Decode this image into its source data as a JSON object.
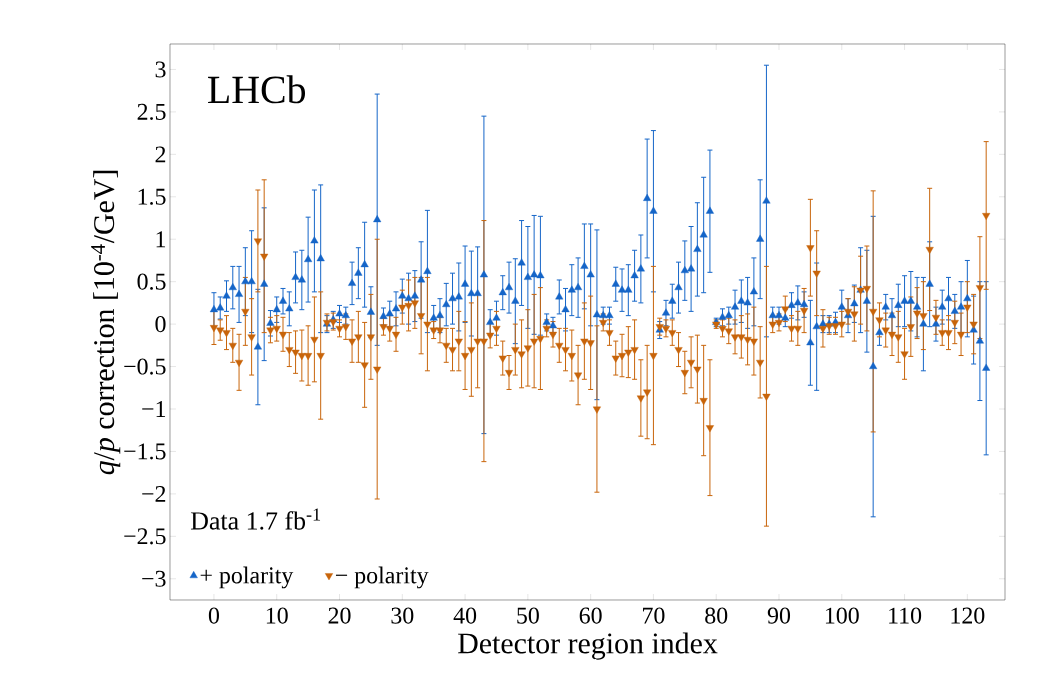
{
  "chart_data": {
    "type": "scatter",
    "xlabel": "Detector region index",
    "ylabel": "*q*/*p* correction [10$^{-4}$/GeV]",
    "annotations": [
      "LHCb",
      "Data 1.7 fb$^{-1}$"
    ],
    "x": [
      0,
      1,
      2,
      3,
      4,
      5,
      6,
      7,
      8,
      9,
      10,
      11,
      12,
      13,
      14,
      15,
      16,
      17,
      18,
      19,
      20,
      21,
      22,
      23,
      24,
      25,
      26,
      27,
      28,
      29,
      30,
      31,
      32,
      33,
      34,
      35,
      36,
      37,
      38,
      39,
      40,
      41,
      42,
      43,
      44,
      45,
      46,
      47,
      48,
      49,
      50,
      51,
      52,
      53,
      54,
      55,
      56,
      57,
      58,
      59,
      60,
      61,
      62,
      63,
      64,
      65,
      66,
      67,
      68,
      69,
      70,
      71,
      72,
      73,
      74,
      75,
      76,
      77,
      78,
      79,
      80,
      81,
      82,
      83,
      84,
      85,
      86,
      87,
      88,
      89,
      90,
      91,
      92,
      93,
      94,
      95,
      96,
      97,
      98,
      99,
      100,
      101,
      102,
      103,
      104,
      105,
      106,
      107,
      108,
      109,
      110,
      111,
      112,
      113,
      114,
      115,
      116,
      117,
      118,
      119,
      120,
      121,
      122,
      123
    ],
    "series": [
      {
        "name": "+ polarity",
        "color": "#1565c8",
        "marker": "triangle",
        "values": [
          0.17,
          0.19,
          0.33,
          0.43,
          0.35,
          0.5,
          0.5,
          -0.27,
          0.47,
          0.01,
          0.17,
          0.27,
          0.18,
          0.55,
          0.52,
          0.76,
          0.98,
          0.77,
          0.0,
          0.05,
          0.12,
          0.1,
          0.48,
          0.6,
          0.7,
          0.14,
          1.23,
          0.09,
          0.12,
          0.18,
          0.33,
          0.3,
          0.33,
          0.52,
          0.62,
          0.07,
          0.1,
          0.23,
          0.3,
          0.32,
          0.47,
          0.36,
          0.36,
          0.58,
          0.02,
          0.07,
          0.37,
          0.43,
          0.27,
          0.72,
          0.55,
          0.58,
          0.57,
          0.02,
          -0.02,
          0.32,
          0.17,
          0.4,
          0.43,
          0.68,
          0.58,
          0.11,
          0.1,
          0.1,
          0.47,
          0.4,
          0.4,
          0.57,
          0.65,
          1.48,
          1.33,
          -0.07,
          0.13,
          0.27,
          0.43,
          0.63,
          0.65,
          0.88,
          1.05,
          1.33,
          0.02,
          0.08,
          0.1,
          0.2,
          0.27,
          0.25,
          0.38,
          1.0,
          1.45,
          0.1,
          0.1,
          0.07,
          0.22,
          0.25,
          0.23,
          -0.22,
          -0.03,
          0.0,
          0.0,
          0.02,
          0.2,
          0.1,
          0.24,
          0.4,
          0.27,
          -0.5,
          -0.1,
          0.2,
          0.1,
          0.22,
          0.27,
          0.27,
          0.2,
          0.0,
          0.47,
          0.0,
          0.2,
          0.3,
          0.15,
          0.2,
          0.3,
          -0.07,
          -0.2,
          -0.52
        ],
        "errors": [
          0.2,
          0.13,
          0.18,
          0.25,
          0.33,
          0.4,
          0.6,
          0.68,
          0.9,
          0.15,
          0.15,
          0.15,
          0.2,
          0.3,
          0.35,
          0.5,
          0.6,
          0.87,
          0.1,
          0.1,
          0.1,
          0.1,
          0.25,
          0.3,
          0.5,
          0.3,
          1.48,
          0.1,
          0.15,
          0.2,
          0.2,
          0.3,
          0.3,
          0.45,
          0.72,
          0.15,
          0.2,
          0.25,
          0.3,
          0.4,
          0.45,
          0.5,
          0.55,
          1.87,
          0.15,
          0.2,
          0.2,
          0.3,
          0.5,
          0.5,
          0.6,
          0.7,
          0.7,
          0.1,
          0.1,
          0.2,
          0.25,
          0.3,
          0.35,
          0.5,
          0.6,
          1.0,
          0.1,
          0.1,
          0.2,
          0.25,
          0.3,
          0.3,
          0.4,
          0.7,
          0.95,
          0.1,
          0.15,
          0.2,
          0.3,
          0.35,
          0.5,
          0.55,
          0.68,
          0.72,
          0.05,
          0.1,
          0.1,
          0.2,
          0.25,
          0.3,
          0.4,
          0.7,
          1.6,
          0.1,
          0.1,
          0.1,
          0.15,
          0.2,
          0.15,
          0.5,
          0.75,
          0.1,
          0.1,
          0.12,
          0.2,
          0.2,
          0.22,
          0.5,
          0.6,
          1.77,
          0.15,
          0.15,
          0.2,
          0.25,
          0.3,
          0.35,
          0.35,
          0.55,
          0.5,
          0.2,
          0.2,
          0.25,
          0.2,
          0.3,
          0.45,
          0.4,
          0.7,
          1.02
        ]
      },
      {
        "name": "− polarity",
        "color": "#c8640a",
        "marker": "triangle",
        "values": [
          -0.04,
          -0.07,
          -0.1,
          -0.25,
          -0.45,
          0.15,
          -0.15,
          0.98,
          0.8,
          -0.07,
          -0.05,
          -0.12,
          -0.3,
          -0.33,
          -0.37,
          -0.37,
          -0.18,
          -0.37,
          0.02,
          0.03,
          -0.05,
          -0.03,
          -0.2,
          -0.15,
          -0.48,
          -0.15,
          -0.53,
          -0.03,
          -0.05,
          -0.12,
          0.2,
          0.22,
          0.25,
          0.1,
          0.0,
          -0.07,
          -0.07,
          -0.25,
          -0.3,
          -0.2,
          -0.37,
          -0.3,
          -0.2,
          -0.2,
          -0.13,
          -0.05,
          -0.4,
          -0.57,
          -0.3,
          -0.35,
          -0.28,
          -0.2,
          -0.17,
          -0.05,
          -0.12,
          -0.25,
          -0.3,
          -0.37,
          -0.6,
          -0.2,
          -0.22,
          -1.0,
          0.02,
          -0.1,
          -0.4,
          -0.37,
          -0.33,
          -0.3,
          -0.87,
          -0.8,
          -0.37,
          -0.03,
          -0.05,
          -0.1,
          -0.3,
          -0.57,
          -0.45,
          -0.53,
          -0.9,
          -1.22,
          0.0,
          -0.05,
          -0.08,
          -0.15,
          -0.15,
          -0.18,
          -0.2,
          -0.45,
          -0.85,
          0.0,
          0.02,
          0.18,
          -0.05,
          -0.05,
          0.16,
          0.9,
          0.6,
          -0.05,
          -0.02,
          -0.02,
          0.0,
          0.15,
          0.12,
          0.4,
          0.42,
          0.15,
          0.05,
          -0.07,
          -0.12,
          -0.15,
          -0.35,
          -0.03,
          0.13,
          0.1,
          0.88,
          0.08,
          -0.1,
          -0.1,
          0.02,
          -0.12,
          0.2,
          0.0,
          0.43,
          1.28
        ],
        "errors": [
          0.2,
          0.12,
          0.2,
          0.2,
          0.33,
          0.4,
          0.45,
          0.6,
          0.9,
          0.15,
          0.15,
          0.2,
          0.2,
          0.25,
          0.3,
          0.35,
          0.5,
          0.75,
          0.1,
          0.1,
          0.1,
          0.15,
          0.25,
          0.3,
          0.5,
          0.5,
          1.53,
          0.1,
          0.15,
          0.2,
          0.2,
          0.3,
          0.3,
          0.45,
          0.55,
          0.1,
          0.15,
          0.2,
          0.25,
          0.35,
          0.4,
          0.55,
          0.55,
          1.42,
          0.15,
          0.2,
          0.2,
          0.2,
          0.3,
          0.4,
          0.45,
          0.55,
          0.6,
          0.1,
          0.15,
          0.2,
          0.25,
          0.3,
          0.35,
          0.45,
          0.55,
          0.98,
          0.1,
          0.15,
          0.2,
          0.25,
          0.3,
          0.35,
          0.45,
          0.55,
          1.05,
          0.1,
          0.1,
          0.15,
          0.2,
          0.25,
          0.3,
          0.4,
          0.65,
          0.8,
          0.05,
          0.1,
          0.15,
          0.2,
          0.25,
          0.3,
          0.4,
          0.42,
          1.53,
          0.1,
          0.1,
          0.15,
          0.15,
          0.2,
          0.26,
          0.57,
          0.5,
          0.22,
          0.1,
          0.1,
          0.15,
          0.15,
          0.32,
          0.4,
          0.5,
          1.42,
          0.2,
          0.2,
          0.25,
          0.3,
          0.3,
          0.35,
          0.3,
          0.4,
          0.72,
          0.2,
          0.15,
          0.2,
          0.25,
          0.25,
          0.3,
          0.35,
          0.6,
          0.87
        ]
      }
    ],
    "xlim": [
      -7,
      126
    ],
    "ylim": [
      -3.25,
      3.3
    ],
    "xticks": [
      0,
      10,
      20,
      30,
      40,
      50,
      60,
      70,
      80,
      90,
      100,
      110,
      120
    ],
    "yticks": [
      {
        "value": -3,
        "label": "−3"
      },
      {
        "value": -2.5,
        "label": "−2.5"
      },
      {
        "value": -2,
        "label": "−2"
      },
      {
        "value": -1.5,
        "label": "−1.5"
      },
      {
        "value": -1,
        "label": "−1"
      },
      {
        "value": -0.5,
        "label": "−0.5"
      },
      0,
      0.5,
      1,
      1.5,
      2,
      2.5,
      3
    ],
    "legend": "bottom left",
    "grid": false,
    "line_style": "none"
  }
}
